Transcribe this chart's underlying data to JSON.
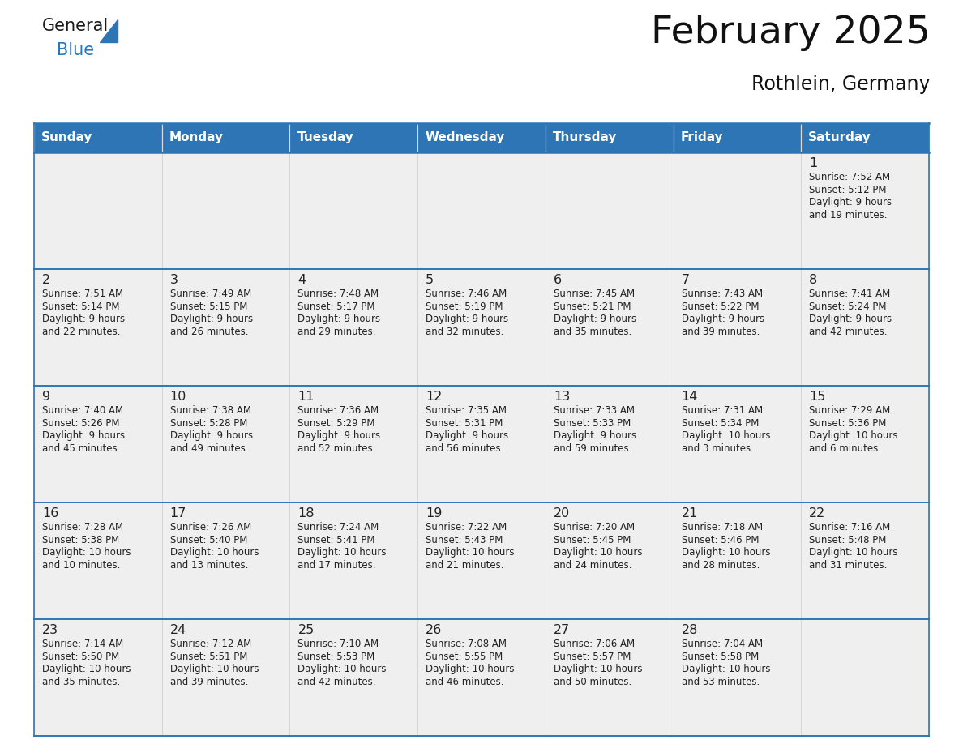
{
  "title": "February 2025",
  "subtitle": "Rothlein, Germany",
  "header_color": "#2E75B6",
  "header_text_color": "#FFFFFF",
  "day_names": [
    "Sunday",
    "Monday",
    "Tuesday",
    "Wednesday",
    "Thursday",
    "Friday",
    "Saturday"
  ],
  "cell_bg_color": "#EFEFEF",
  "border_color": "#2E75B6",
  "text_color": "#222222",
  "title_color": "#111111",
  "logo_black": "#1a1a1a",
  "logo_blue": "#2878BE",
  "triangle_color": "#2E75B6",
  "calendar_data": [
    [
      {
        "day": null,
        "info": null
      },
      {
        "day": null,
        "info": null
      },
      {
        "day": null,
        "info": null
      },
      {
        "day": null,
        "info": null
      },
      {
        "day": null,
        "info": null
      },
      {
        "day": null,
        "info": null
      },
      {
        "day": 1,
        "info": "Sunrise: 7:52 AM\nSunset: 5:12 PM\nDaylight: 9 hours\nand 19 minutes."
      }
    ],
    [
      {
        "day": 2,
        "info": "Sunrise: 7:51 AM\nSunset: 5:14 PM\nDaylight: 9 hours\nand 22 minutes."
      },
      {
        "day": 3,
        "info": "Sunrise: 7:49 AM\nSunset: 5:15 PM\nDaylight: 9 hours\nand 26 minutes."
      },
      {
        "day": 4,
        "info": "Sunrise: 7:48 AM\nSunset: 5:17 PM\nDaylight: 9 hours\nand 29 minutes."
      },
      {
        "day": 5,
        "info": "Sunrise: 7:46 AM\nSunset: 5:19 PM\nDaylight: 9 hours\nand 32 minutes."
      },
      {
        "day": 6,
        "info": "Sunrise: 7:45 AM\nSunset: 5:21 PM\nDaylight: 9 hours\nand 35 minutes."
      },
      {
        "day": 7,
        "info": "Sunrise: 7:43 AM\nSunset: 5:22 PM\nDaylight: 9 hours\nand 39 minutes."
      },
      {
        "day": 8,
        "info": "Sunrise: 7:41 AM\nSunset: 5:24 PM\nDaylight: 9 hours\nand 42 minutes."
      }
    ],
    [
      {
        "day": 9,
        "info": "Sunrise: 7:40 AM\nSunset: 5:26 PM\nDaylight: 9 hours\nand 45 minutes."
      },
      {
        "day": 10,
        "info": "Sunrise: 7:38 AM\nSunset: 5:28 PM\nDaylight: 9 hours\nand 49 minutes."
      },
      {
        "day": 11,
        "info": "Sunrise: 7:36 AM\nSunset: 5:29 PM\nDaylight: 9 hours\nand 52 minutes."
      },
      {
        "day": 12,
        "info": "Sunrise: 7:35 AM\nSunset: 5:31 PM\nDaylight: 9 hours\nand 56 minutes."
      },
      {
        "day": 13,
        "info": "Sunrise: 7:33 AM\nSunset: 5:33 PM\nDaylight: 9 hours\nand 59 minutes."
      },
      {
        "day": 14,
        "info": "Sunrise: 7:31 AM\nSunset: 5:34 PM\nDaylight: 10 hours\nand 3 minutes."
      },
      {
        "day": 15,
        "info": "Sunrise: 7:29 AM\nSunset: 5:36 PM\nDaylight: 10 hours\nand 6 minutes."
      }
    ],
    [
      {
        "day": 16,
        "info": "Sunrise: 7:28 AM\nSunset: 5:38 PM\nDaylight: 10 hours\nand 10 minutes."
      },
      {
        "day": 17,
        "info": "Sunrise: 7:26 AM\nSunset: 5:40 PM\nDaylight: 10 hours\nand 13 minutes."
      },
      {
        "day": 18,
        "info": "Sunrise: 7:24 AM\nSunset: 5:41 PM\nDaylight: 10 hours\nand 17 minutes."
      },
      {
        "day": 19,
        "info": "Sunrise: 7:22 AM\nSunset: 5:43 PM\nDaylight: 10 hours\nand 21 minutes."
      },
      {
        "day": 20,
        "info": "Sunrise: 7:20 AM\nSunset: 5:45 PM\nDaylight: 10 hours\nand 24 minutes."
      },
      {
        "day": 21,
        "info": "Sunrise: 7:18 AM\nSunset: 5:46 PM\nDaylight: 10 hours\nand 28 minutes."
      },
      {
        "day": 22,
        "info": "Sunrise: 7:16 AM\nSunset: 5:48 PM\nDaylight: 10 hours\nand 31 minutes."
      }
    ],
    [
      {
        "day": 23,
        "info": "Sunrise: 7:14 AM\nSunset: 5:50 PM\nDaylight: 10 hours\nand 35 minutes."
      },
      {
        "day": 24,
        "info": "Sunrise: 7:12 AM\nSunset: 5:51 PM\nDaylight: 10 hours\nand 39 minutes."
      },
      {
        "day": 25,
        "info": "Sunrise: 7:10 AM\nSunset: 5:53 PM\nDaylight: 10 hours\nand 42 minutes."
      },
      {
        "day": 26,
        "info": "Sunrise: 7:08 AM\nSunset: 5:55 PM\nDaylight: 10 hours\nand 46 minutes."
      },
      {
        "day": 27,
        "info": "Sunrise: 7:06 AM\nSunset: 5:57 PM\nDaylight: 10 hours\nand 50 minutes."
      },
      {
        "day": 28,
        "info": "Sunrise: 7:04 AM\nSunset: 5:58 PM\nDaylight: 10 hours\nand 53 minutes."
      },
      {
        "day": null,
        "info": null
      }
    ]
  ]
}
